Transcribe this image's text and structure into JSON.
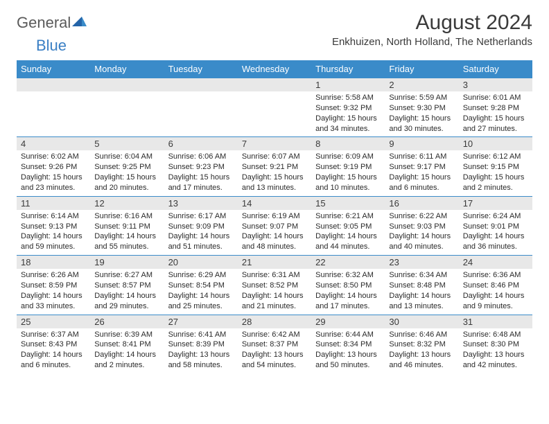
{
  "logo": {
    "text1": "General",
    "text2": "Blue"
  },
  "title": "August 2024",
  "location": "Enkhuizen, North Holland, The Netherlands",
  "colors": {
    "header_bg": "#3a8bc9",
    "header_text": "#ffffff",
    "daynum_bg": "#e8e8e8",
    "border": "#3a8bc9",
    "text": "#2a2a2a",
    "logo_gray": "#5a5a5a",
    "logo_blue": "#3a7fc4"
  },
  "type": "table",
  "days_of_week": [
    "Sunday",
    "Monday",
    "Tuesday",
    "Wednesday",
    "Thursday",
    "Friday",
    "Saturday"
  ],
  "weeks": [
    [
      null,
      null,
      null,
      null,
      {
        "n": "1",
        "sr": "5:58 AM",
        "ss": "9:32 PM",
        "dl": "15 hours and 34 minutes."
      },
      {
        "n": "2",
        "sr": "5:59 AM",
        "ss": "9:30 PM",
        "dl": "15 hours and 30 minutes."
      },
      {
        "n": "3",
        "sr": "6:01 AM",
        "ss": "9:28 PM",
        "dl": "15 hours and 27 minutes."
      }
    ],
    [
      {
        "n": "4",
        "sr": "6:02 AM",
        "ss": "9:26 PM",
        "dl": "15 hours and 23 minutes."
      },
      {
        "n": "5",
        "sr": "6:04 AM",
        "ss": "9:25 PM",
        "dl": "15 hours and 20 minutes."
      },
      {
        "n": "6",
        "sr": "6:06 AM",
        "ss": "9:23 PM",
        "dl": "15 hours and 17 minutes."
      },
      {
        "n": "7",
        "sr": "6:07 AM",
        "ss": "9:21 PM",
        "dl": "15 hours and 13 minutes."
      },
      {
        "n": "8",
        "sr": "6:09 AM",
        "ss": "9:19 PM",
        "dl": "15 hours and 10 minutes."
      },
      {
        "n": "9",
        "sr": "6:11 AM",
        "ss": "9:17 PM",
        "dl": "15 hours and 6 minutes."
      },
      {
        "n": "10",
        "sr": "6:12 AM",
        "ss": "9:15 PM",
        "dl": "15 hours and 2 minutes."
      }
    ],
    [
      {
        "n": "11",
        "sr": "6:14 AM",
        "ss": "9:13 PM",
        "dl": "14 hours and 59 minutes."
      },
      {
        "n": "12",
        "sr": "6:16 AM",
        "ss": "9:11 PM",
        "dl": "14 hours and 55 minutes."
      },
      {
        "n": "13",
        "sr": "6:17 AM",
        "ss": "9:09 PM",
        "dl": "14 hours and 51 minutes."
      },
      {
        "n": "14",
        "sr": "6:19 AM",
        "ss": "9:07 PM",
        "dl": "14 hours and 48 minutes."
      },
      {
        "n": "15",
        "sr": "6:21 AM",
        "ss": "9:05 PM",
        "dl": "14 hours and 44 minutes."
      },
      {
        "n": "16",
        "sr": "6:22 AM",
        "ss": "9:03 PM",
        "dl": "14 hours and 40 minutes."
      },
      {
        "n": "17",
        "sr": "6:24 AM",
        "ss": "9:01 PM",
        "dl": "14 hours and 36 minutes."
      }
    ],
    [
      {
        "n": "18",
        "sr": "6:26 AM",
        "ss": "8:59 PM",
        "dl": "14 hours and 33 minutes."
      },
      {
        "n": "19",
        "sr": "6:27 AM",
        "ss": "8:57 PM",
        "dl": "14 hours and 29 minutes."
      },
      {
        "n": "20",
        "sr": "6:29 AM",
        "ss": "8:54 PM",
        "dl": "14 hours and 25 minutes."
      },
      {
        "n": "21",
        "sr": "6:31 AM",
        "ss": "8:52 PM",
        "dl": "14 hours and 21 minutes."
      },
      {
        "n": "22",
        "sr": "6:32 AM",
        "ss": "8:50 PM",
        "dl": "14 hours and 17 minutes."
      },
      {
        "n": "23",
        "sr": "6:34 AM",
        "ss": "8:48 PM",
        "dl": "14 hours and 13 minutes."
      },
      {
        "n": "24",
        "sr": "6:36 AM",
        "ss": "8:46 PM",
        "dl": "14 hours and 9 minutes."
      }
    ],
    [
      {
        "n": "25",
        "sr": "6:37 AM",
        "ss": "8:43 PM",
        "dl": "14 hours and 6 minutes."
      },
      {
        "n": "26",
        "sr": "6:39 AM",
        "ss": "8:41 PM",
        "dl": "14 hours and 2 minutes."
      },
      {
        "n": "27",
        "sr": "6:41 AM",
        "ss": "8:39 PM",
        "dl": "13 hours and 58 minutes."
      },
      {
        "n": "28",
        "sr": "6:42 AM",
        "ss": "8:37 PM",
        "dl": "13 hours and 54 minutes."
      },
      {
        "n": "29",
        "sr": "6:44 AM",
        "ss": "8:34 PM",
        "dl": "13 hours and 50 minutes."
      },
      {
        "n": "30",
        "sr": "6:46 AM",
        "ss": "8:32 PM",
        "dl": "13 hours and 46 minutes."
      },
      {
        "n": "31",
        "sr": "6:48 AM",
        "ss": "8:30 PM",
        "dl": "13 hours and 42 minutes."
      }
    ]
  ],
  "labels": {
    "sunrise": "Sunrise:",
    "sunset": "Sunset:",
    "daylight": "Daylight:"
  }
}
